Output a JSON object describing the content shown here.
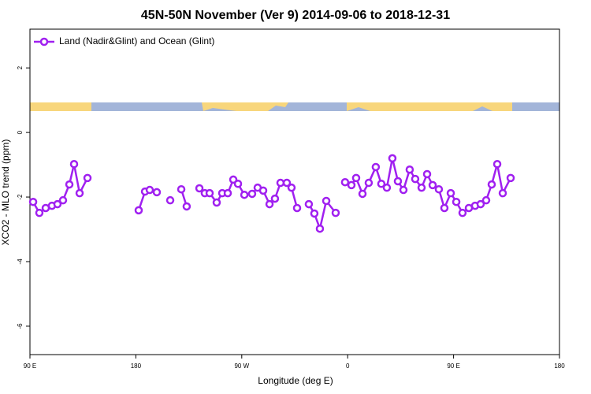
{
  "chart_data": {
    "type": "line",
    "title": "45N-50N November (Ver 9)   2014-09-06 to 2018-12-31",
    "xlabel": "Longitude (deg E)",
    "ylabel": "XCO2 - MLO trend (ppm)",
    "xlim": [
      90,
      540
    ],
    "xticks": [
      {
        "value": 90,
        "label": "90 E"
      },
      180,
      {
        "value": 270,
        "label": "90 W"
      },
      {
        "value": 360,
        "label": "0"
      },
      {
        "value": 450,
        "label": "90 E"
      },
      {
        "value": 540,
        "label": "180"
      }
    ],
    "ylim": [
      -6.88,
      3.2
    ],
    "yticks": [
      -6,
      -4,
      -2,
      0,
      2
    ],
    "legend": "top-left",
    "x": [
      92.7,
      98.0,
      103.4,
      108.7,
      113.4,
      118.1,
      123.5,
      127.5,
      132.2,
      138.9,
      null,
      182.4,
      187.8,
      191.8,
      197.8,
      null,
      209.2,
      null,
      218.6,
      223.2,
      null,
      234.0,
      238.6,
      242.7,
      248.7,
      253.4,
      258.1,
      262.8,
      266.8,
      272.2,
      278.8,
      283.5,
      288.2,
      293.6,
      298.2,
      302.9,
      308.3,
      312.3,
      317.0,
      null,
      327.0,
      331.7,
      336.4,
      341.8,
      349.8,
      null,
      357.8,
      363.2,
      367.2,
      372.6,
      377.9,
      383.9,
      388.6,
      393.3,
      398.0,
      402.7,
      407.4,
      412.7,
      417.4,
      422.8,
      427.5,
      432.2,
      437.5,
      442.2,
      447.6,
      452.3,
      457.6,
      463.0,
      468.3,
      473.0,
      477.7,
      482.4,
      487.1,
      491.8,
      498.5
    ],
    "series": [
      {
        "name": "Land (Nadir&Glint) and Ocean (Glint)",
        "color": "#a020f0",
        "values": [
          -2.15,
          -2.49,
          -2.34,
          -2.27,
          -2.22,
          -2.1,
          -1.61,
          -0.98,
          -1.88,
          -1.41,
          null,
          -2.41,
          -1.83,
          -1.78,
          -1.85,
          null,
          -2.1,
          null,
          -1.76,
          -2.29,
          null,
          -1.73,
          -1.88,
          -1.88,
          -2.17,
          -1.88,
          -1.88,
          -1.46,
          -1.59,
          -1.93,
          -1.9,
          -1.71,
          -1.8,
          -2.22,
          -2.05,
          -1.56,
          -1.56,
          -1.71,
          -2.34,
          null,
          -2.22,
          -2.51,
          -2.98,
          -2.12,
          -2.49,
          null,
          -1.54,
          -1.63,
          -1.41,
          -1.9,
          -1.56,
          -1.07,
          -1.59,
          -1.71,
          -0.8,
          -1.51,
          -1.78,
          -1.15,
          -1.44,
          -1.71,
          -1.29,
          -1.63,
          -1.76,
          -2.34,
          -1.88,
          -2.15,
          -2.49,
          -2.34,
          -2.27,
          -2.22,
          -2.1,
          -1.61,
          -0.98,
          -1.88,
          -1.41
        ]
      }
    ]
  }
}
